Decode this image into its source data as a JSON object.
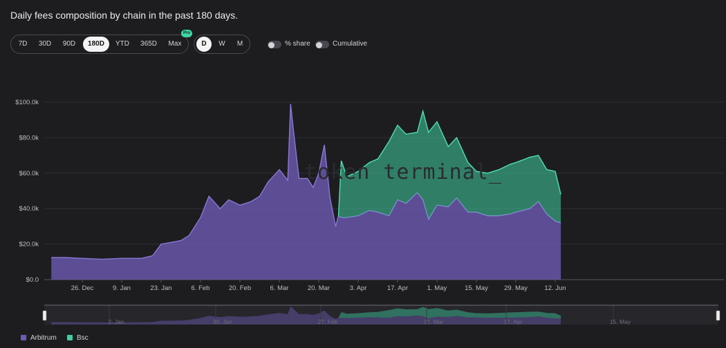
{
  "title": "Daily fees composition by chain in the past 180 days.",
  "ranges": [
    {
      "label": "7D",
      "active": false
    },
    {
      "label": "30D",
      "active": false
    },
    {
      "label": "90D",
      "active": false
    },
    {
      "label": "180D",
      "active": true
    },
    {
      "label": "YTD",
      "active": false
    },
    {
      "label": "365D",
      "active": false
    },
    {
      "label": "Max",
      "active": false
    }
  ],
  "pro_badge": "Pro",
  "granularity": [
    {
      "label": "D",
      "active": true
    },
    {
      "label": "W",
      "active": false
    },
    {
      "label": "M",
      "active": false
    }
  ],
  "toggles": [
    {
      "label": "% share",
      "on": false
    },
    {
      "label": "Cumulative",
      "on": false
    }
  ],
  "watermark": "token terminal_",
  "legend": [
    {
      "label": "Arbitrum",
      "color": "#6e5bb5"
    },
    {
      "label": "Bsc",
      "color": "#3fcea1"
    }
  ],
  "navigator_labels": [
    "2. Jan",
    "30. Jan",
    "27. Feb",
    "27. Mar",
    "17. Apr",
    "15. May"
  ],
  "chart_data": {
    "type": "area",
    "stacked": true,
    "title": "Daily fees composition by chain in the past 180 days.",
    "x_tick_labels": [
      "26. Dec",
      "9. Jan",
      "23. Jan",
      "6. Feb",
      "20. Feb",
      "6. Mar",
      "20. Mar",
      "3. Apr",
      "17. Apr",
      "1. May",
      "15. May",
      "29. May",
      "12. Jun"
    ],
    "y_tick_labels": [
      "$0.0",
      "$20.0k",
      "$40.0k",
      "$60.0k",
      "$80.0k",
      "$100.0k"
    ],
    "ylim": [
      0,
      100000
    ],
    "grid": true,
    "legend_position": "bottom-left",
    "x": [
      "Dec 15",
      "Dec 20",
      "Dec 26",
      "Jan 2",
      "Jan 9",
      "Jan 16",
      "Jan 20",
      "Jan 23",
      "Jan 30",
      "Feb 2",
      "Feb 4",
      "Feb 6",
      "Feb 9",
      "Feb 13",
      "Feb 16",
      "Feb 20",
      "Feb 24",
      "Feb 27",
      "Mar 2",
      "Mar 6",
      "Mar 9",
      "Mar 10",
      "Mar 11",
      "Mar 13",
      "Mar 16",
      "Mar 18",
      "Mar 20",
      "Mar 22",
      "Mar 24",
      "Mar 26",
      "Mar 27",
      "Mar 28",
      "Mar 30",
      "Apr 3",
      "Apr 7",
      "Apr 10",
      "Apr 14",
      "Apr 17",
      "Apr 20",
      "Apr 24",
      "Apr 26",
      "Apr 28",
      "May 1",
      "May 5",
      "May 8",
      "May 12",
      "May 15",
      "May 19",
      "May 23",
      "May 27",
      "May 29",
      "Jun 3",
      "Jun 6",
      "Jun 9",
      "Jun 12",
      "Jun 14"
    ],
    "series": [
      {
        "name": "Arbitrum",
        "color": "#6e5bb5",
        "values": [
          12500,
          12500,
          12000,
          11500,
          12000,
          12000,
          13500,
          20000,
          22000,
          25000,
          30000,
          35000,
          47000,
          40000,
          45000,
          42000,
          44000,
          47000,
          55000,
          62000,
          56000,
          99000,
          84000,
          57000,
          57000,
          52000,
          60000,
          76000,
          46000,
          30000,
          36000,
          35000,
          35000,
          36000,
          39000,
          38000,
          36000,
          45000,
          43000,
          49000,
          45000,
          34000,
          42000,
          41000,
          46000,
          38000,
          38000,
          36000,
          36000,
          37000,
          38000,
          40000,
          44000,
          37000,
          33000,
          32000
        ]
      },
      {
        "name": "Bsc",
        "color": "#3fcea1",
        "values": [
          0,
          0,
          0,
          0,
          0,
          0,
          0,
          0,
          0,
          0,
          0,
          0,
          0,
          0,
          0,
          0,
          0,
          0,
          0,
          0,
          0,
          0,
          0,
          0,
          0,
          0,
          0,
          0,
          0,
          0,
          0,
          32000,
          23000,
          25000,
          27000,
          30000,
          42000,
          42000,
          39000,
          34000,
          50000,
          49000,
          47000,
          34000,
          34000,
          28000,
          23000,
          24000,
          26000,
          28000,
          28000,
          29000,
          26000,
          25000,
          28000,
          16000
        ]
      }
    ]
  }
}
